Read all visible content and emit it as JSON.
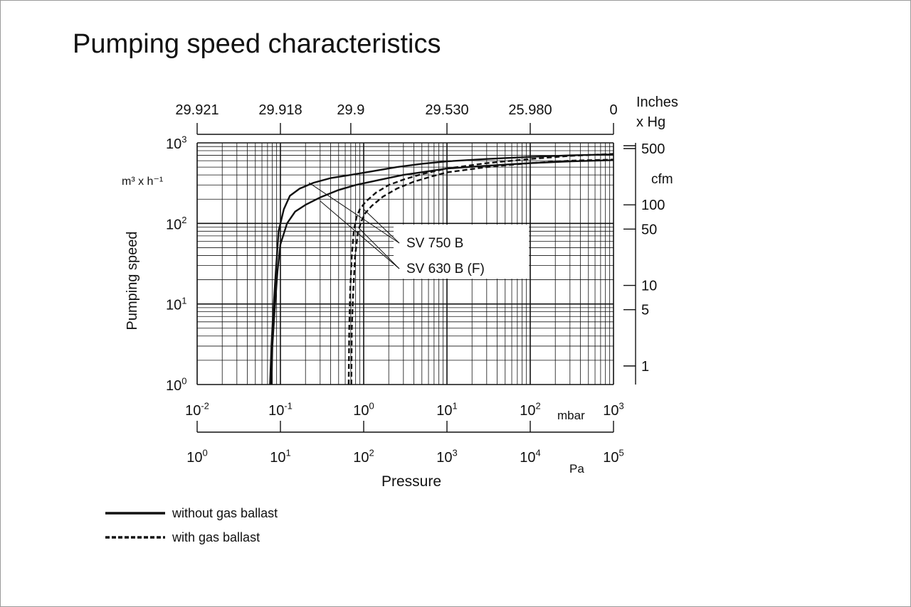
{
  "chart_data": {
    "type": "line",
    "title": "Pumping speed characteristics",
    "x_scale": "log",
    "y_scale": "log",
    "xlim": [
      0.01,
      1000
    ],
    "ylim": [
      1,
      1000
    ],
    "grid": true,
    "xlabel": "Pressure",
    "ylabel": "Pumping speed",
    "y_unit": "m³ x h⁻¹",
    "x_unit_primary": "mbar",
    "x_unit_secondary": "Pa",
    "x_ticks_mbar": [
      {
        "base": "10",
        "exp": "-2"
      },
      {
        "base": "10",
        "exp": "-1"
      },
      {
        "base": "10",
        "exp": "0"
      },
      {
        "base": "10",
        "exp": "1"
      },
      {
        "base": "10",
        "exp": "2"
      },
      {
        "base": "10",
        "exp": "3"
      }
    ],
    "x_ticks_pa": [
      {
        "base": "10",
        "exp": "0"
      },
      {
        "base": "10",
        "exp": "1"
      },
      {
        "base": "10",
        "exp": "2"
      },
      {
        "base": "10",
        "exp": "3"
      },
      {
        "base": "10",
        "exp": "4"
      },
      {
        "base": "10",
        "exp": "5"
      }
    ],
    "y_ticks": [
      {
        "value": 1,
        "base": "10",
        "exp": "0"
      },
      {
        "value": 10,
        "base": "10",
        "exp": "1"
      },
      {
        "value": 100,
        "base": "10",
        "exp": "2"
      },
      {
        "value": 1000,
        "base": "10",
        "exp": "3"
      }
    ],
    "top_axis": {
      "unit_line1": "Inches",
      "unit_line2": "x Hg",
      "ticks": [
        {
          "label": "29.921",
          "mbar": 0.01
        },
        {
          "label": "29.918",
          "mbar": 0.1
        },
        {
          "label": "29.9",
          "mbar": 0.7
        },
        {
          "label": "29.530",
          "mbar": 10
        },
        {
          "label": "25.980",
          "mbar": 100
        },
        {
          "label": "0",
          "mbar": 1000
        }
      ]
    },
    "right_axis": {
      "unit": "cfm",
      "ticks": [
        {
          "label": "500",
          "m3h": 850
        },
        {
          "label": "100",
          "m3h": 170
        },
        {
          "label": "50",
          "m3h": 85
        },
        {
          "label": "10",
          "m3h": 17
        },
        {
          "label": "5",
          "m3h": 8.5
        },
        {
          "label": "1",
          "m3h": 1.7
        }
      ]
    },
    "annotations": [
      {
        "label": "SV 750 B",
        "targets": [
          {
            "x": 0.22,
            "y": 320
          },
          {
            "x": 1.0,
            "y": 150
          }
        ]
      },
      {
        "label": "SV 630 B (F)",
        "targets": [
          {
            "x": 0.3,
            "y": 190
          },
          {
            "x": 0.9,
            "y": 85
          }
        ]
      }
    ],
    "series": [
      {
        "name": "SV 750 B",
        "style": "without gas ballast",
        "x": [
          0.075,
          0.078,
          0.082,
          0.088,
          0.095,
          0.11,
          0.13,
          0.17,
          0.25,
          0.4,
          0.7,
          1.2,
          2.5,
          5,
          10,
          30,
          100,
          300,
          1000
        ],
        "y": [
          1,
          3,
          8,
          25,
          80,
          150,
          220,
          270,
          320,
          365,
          400,
          440,
          500,
          550,
          590,
          630,
          670,
          700,
          720
        ]
      },
      {
        "name": "SV 630 B (F)",
        "style": "without gas ballast",
        "x": [
          0.078,
          0.08,
          0.085,
          0.092,
          0.1,
          0.12,
          0.15,
          0.2,
          0.3,
          0.5,
          0.8,
          1.5,
          3,
          6,
          10,
          30,
          100,
          300,
          1000
        ],
        "y": [
          1,
          3,
          8,
          25,
          55,
          100,
          140,
          170,
          210,
          260,
          300,
          345,
          400,
          445,
          480,
          520,
          560,
          590,
          610
        ]
      },
      {
        "name": "SV 750 B",
        "style": "with gas ballast",
        "x": [
          0.66,
          0.67,
          0.69,
          0.72,
          0.76,
          0.82,
          0.9,
          1.05,
          1.4,
          2,
          3,
          5,
          10,
          30,
          100,
          300,
          1000
        ],
        "y": [
          1,
          5,
          15,
          40,
          80,
          120,
          150,
          185,
          240,
          300,
          350,
          410,
          480,
          560,
          630,
          690,
          730
        ]
      },
      {
        "name": "SV 630 B (F)",
        "style": "with gas ballast",
        "x": [
          0.71,
          0.72,
          0.75,
          0.79,
          0.85,
          0.93,
          1.05,
          1.25,
          1.7,
          2.5,
          4,
          7,
          10,
          30,
          100,
          300,
          1000
        ],
        "y": [
          1,
          5,
          15,
          40,
          75,
          105,
          135,
          165,
          215,
          270,
          330,
          390,
          430,
          500,
          560,
          600,
          620
        ]
      }
    ]
  },
  "legend": [
    {
      "label": "without gas ballast",
      "dashed": false
    },
    {
      "label": "with gas ballast",
      "dashed": true
    }
  ]
}
